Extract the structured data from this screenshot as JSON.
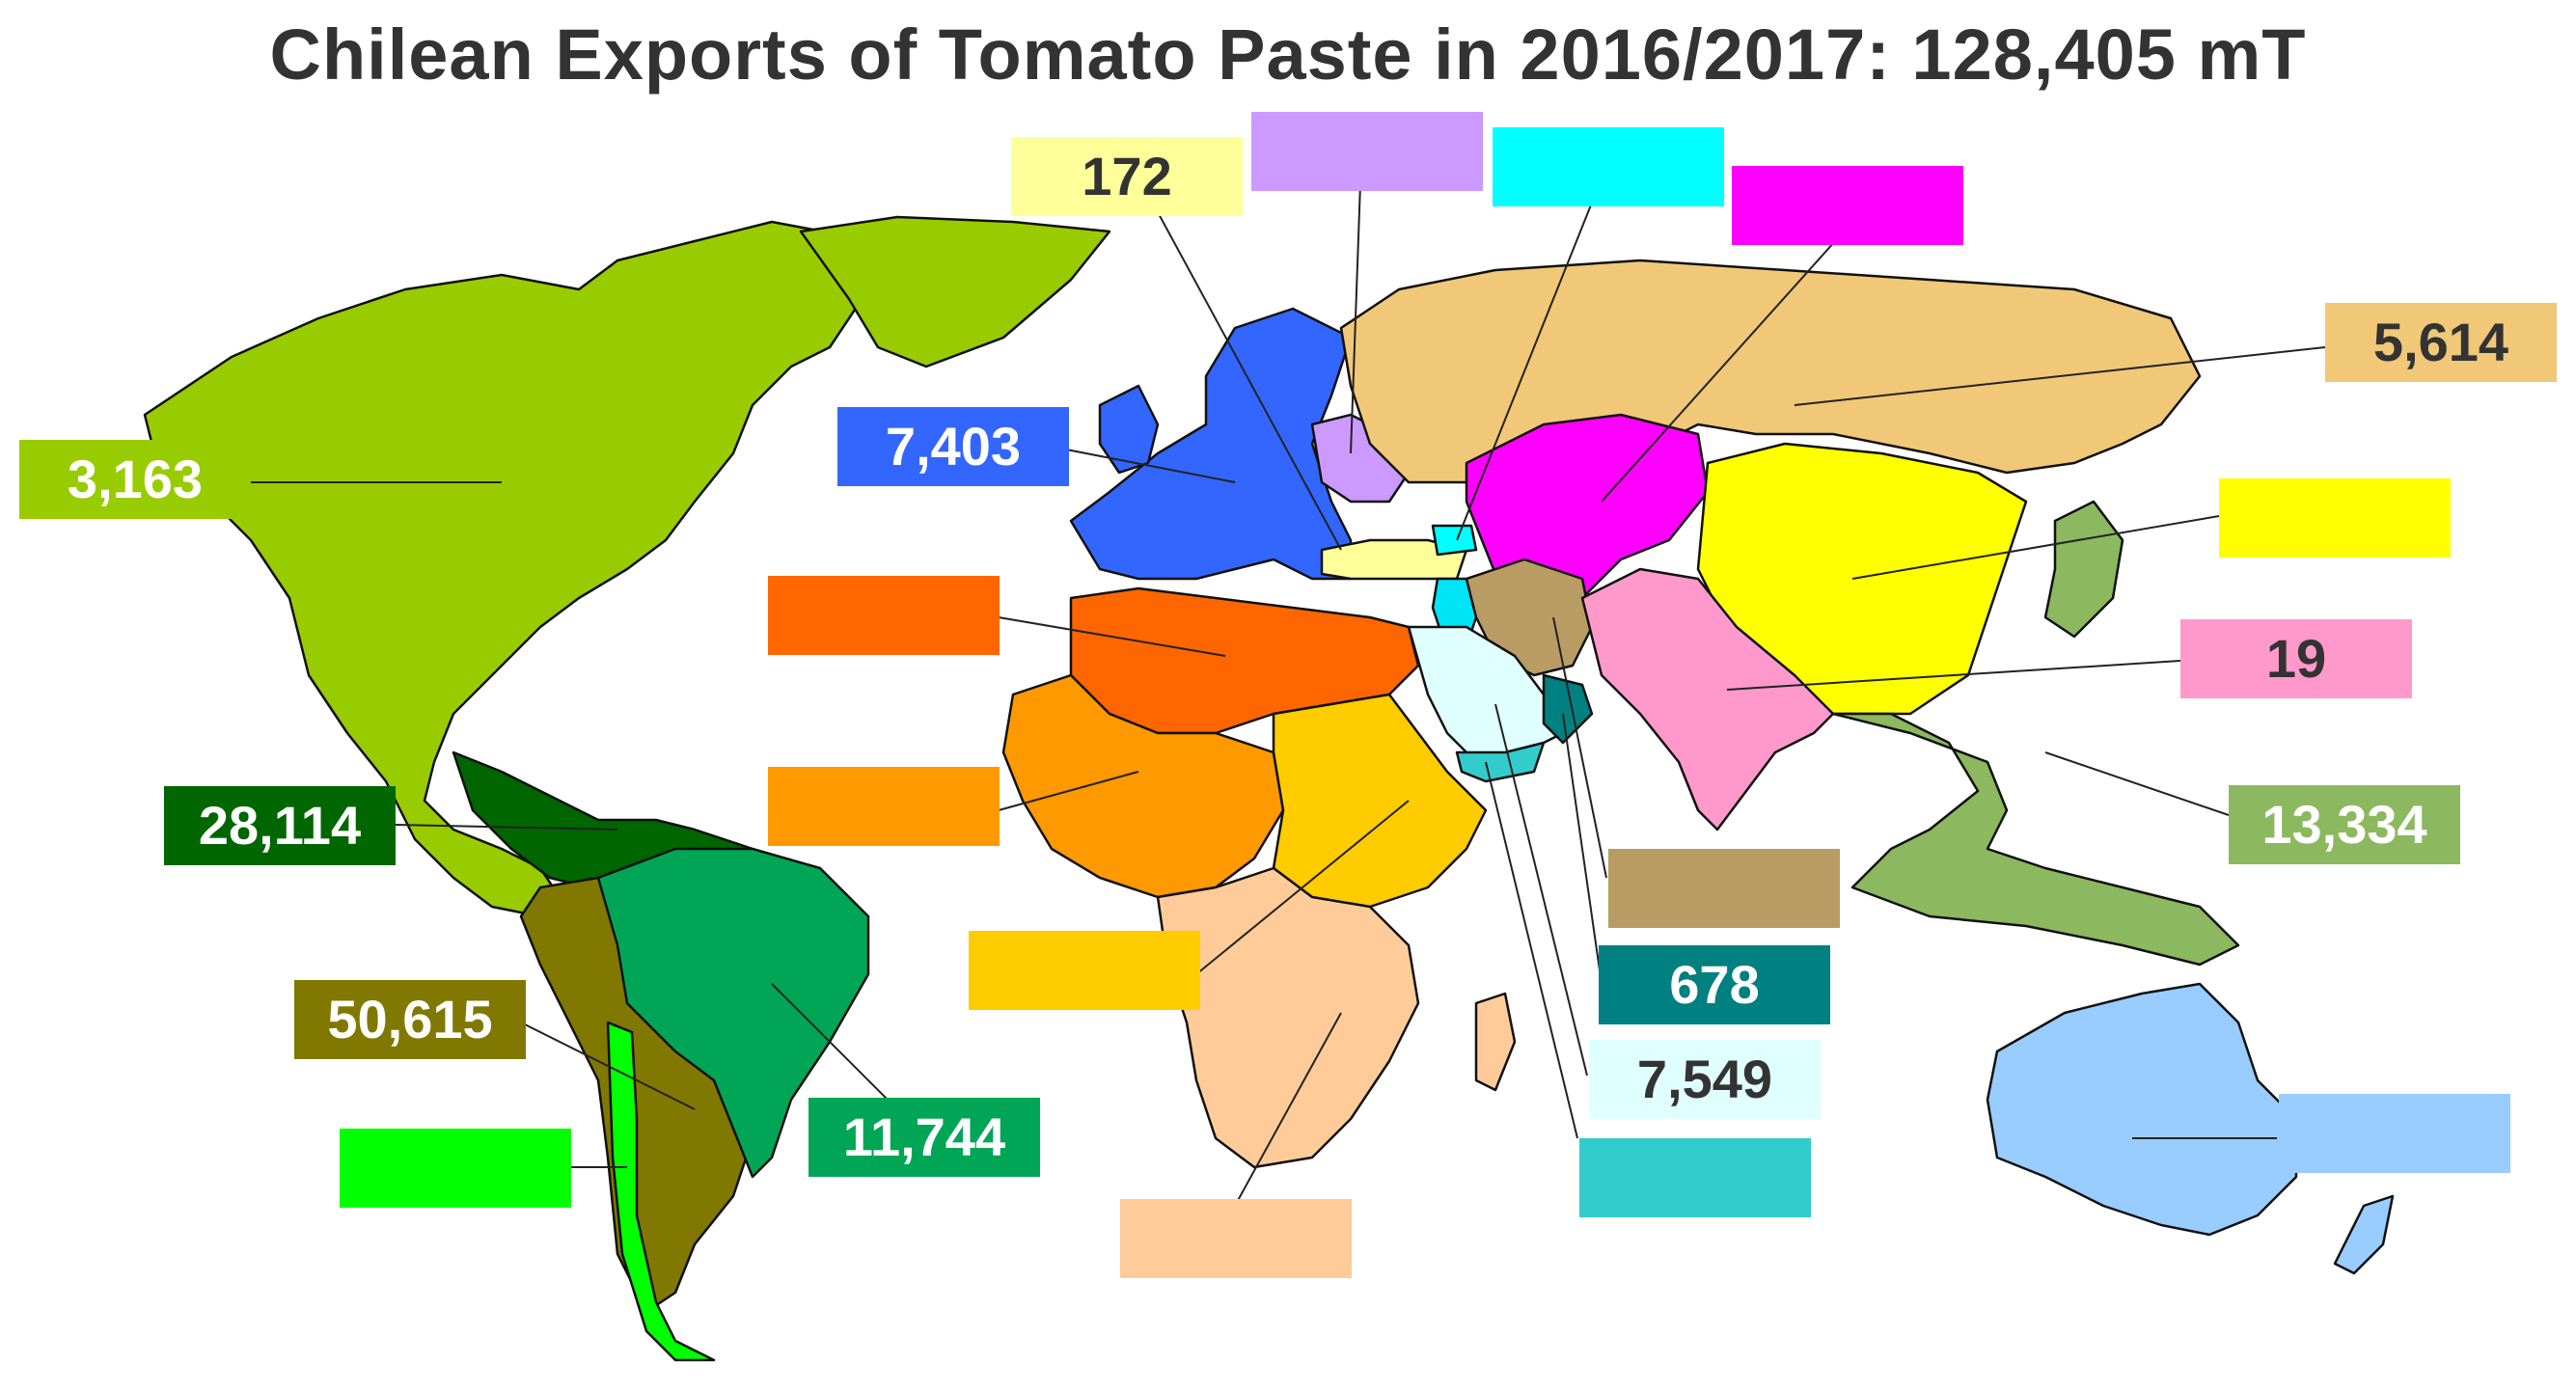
{
  "title": "Chilean Exports of Tomato Paste in 2016/2017: 128,405 mT",
  "regions": [
    {
      "id": "north-america",
      "value": "3,163",
      "color": "#99CC00",
      "text_color": "#ffffff"
    },
    {
      "id": "central-america-caribbean",
      "value": "28,114",
      "color": "#006600",
      "text_color": "#ffffff"
    },
    {
      "id": "andean-south-america",
      "value": "50,615",
      "color": "#807800",
      "text_color": "#ffffff"
    },
    {
      "id": "chile",
      "value": "",
      "color": "#00FF00",
      "text_color": "#ffffff"
    },
    {
      "id": "brazil-east-south-america",
      "value": "11,744",
      "color": "#00A656",
      "text_color": "#ffffff"
    },
    {
      "id": "europe",
      "value": "7,403",
      "color": "#3366FF",
      "text_color": "#ffffff"
    },
    {
      "id": "turkey",
      "value": "172",
      "color": "#FFFF99",
      "text_color": "#333333"
    },
    {
      "id": "ukraine-belarus",
      "value": "",
      "color": "#CC99FF",
      "text_color": "#333333"
    },
    {
      "id": "caucasus",
      "value": "",
      "color": "#00FFFF",
      "text_color": "#333333"
    },
    {
      "id": "central-asia",
      "value": "",
      "color": "#FF00FF",
      "text_color": "#333333"
    },
    {
      "id": "russia",
      "value": "5,614",
      "color": "#F0C878",
      "text_color": "#333333"
    },
    {
      "id": "china-mongolia",
      "value": "",
      "color": "#FFFF00",
      "text_color": "#333333"
    },
    {
      "id": "south-asia",
      "value": "19",
      "color": "#FF99CC",
      "text_color": "#333333"
    },
    {
      "id": "southeast-asia-japan",
      "value": "13,334",
      "color": "#8CB860",
      "text_color": "#ffffff"
    },
    {
      "id": "north-africa",
      "value": "",
      "color": "#FF6600",
      "text_color": "#ffffff"
    },
    {
      "id": "west-africa",
      "value": "",
      "color": "#FF9900",
      "text_color": "#ffffff"
    },
    {
      "id": "east-africa",
      "value": "",
      "color": "#FFCC00",
      "text_color": "#333333"
    },
    {
      "id": "southern-africa",
      "value": "",
      "color": "#FFCC99",
      "text_color": "#333333"
    },
    {
      "id": "iran-afghanistan",
      "value": "",
      "color": "#B89C64",
      "text_color": "#333333"
    },
    {
      "id": "oman-uae",
      "value": "678",
      "color": "#008080",
      "text_color": "#ffffff"
    },
    {
      "id": "arabian-peninsula",
      "value": "7,549",
      "color": "#E0FFFF",
      "text_color": "#333333"
    },
    {
      "id": "yemen",
      "value": "",
      "color": "#33CCCC",
      "text_color": "#333333"
    },
    {
      "id": "levant",
      "value": "",
      "color": "#00E5F5",
      "text_color": "#333333"
    },
    {
      "id": "oceania",
      "value": "",
      "color": "#99CCFF",
      "text_color": "#333333"
    }
  ]
}
